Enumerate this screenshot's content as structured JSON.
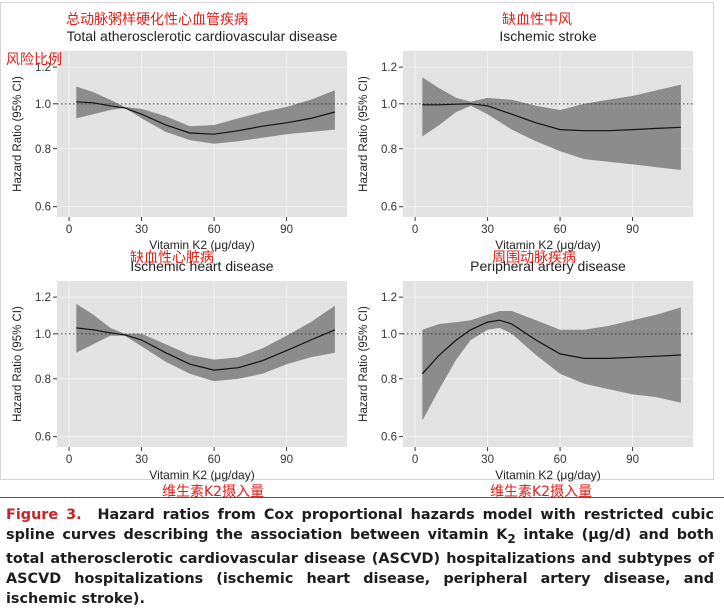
{
  "annotations": {
    "panel1_cn": "总动脉粥样硬化性心血管疾病",
    "ratio_cn": "风险比例",
    "panel2_cn": "缺血性中风",
    "panel3_cn": "缺血性心脏病",
    "panel4_cn": "周围动脉疾病",
    "xaxis_cn_left": "维生素K2摄入量",
    "xaxis_cn_right": "维生素K2摄入量"
  },
  "caption": {
    "label": "Figure 3.",
    "text_a": "Hazard ratios from Cox proportional hazards model with restricted cubic spline curves describing the association between vitamin K",
    "subscript": "2",
    "text_b": " intake (μg/d) and both total atherosclerotic cardiovascular disease (ASCVD) hospitalizations and subtypes of ASCVD hospitalizations (ischemic heart disease, peripheral artery disease, and ischemic stroke)."
  },
  "colors": {
    "panel_bg": "#e3e3e3",
    "band": "#8c8c8c",
    "line": "#111111",
    "annotation_red": "#e0201b",
    "figure_label": "#c8222a"
  },
  "chart_data": [
    {
      "type": "line",
      "title": "Total atherosclerotic cardiovascular disease",
      "xlabel": "Vitamin K2 (μg/day)",
      "ylabel": "Hazard Ratio (95% CI)",
      "x_ticks": [
        0,
        30,
        60,
        90
      ],
      "y_ticks": [
        0.6,
        0.8,
        1.0,
        1.2
      ],
      "y_tick_labels": [
        "0.6",
        "0.8",
        "1.0",
        "1.2"
      ],
      "xlim": [
        -5,
        115
      ],
      "ylim": [
        0.57,
        1.3
      ],
      "y_scale": "log",
      "reference_line": 1.0,
      "grid": true,
      "x": [
        3,
        10,
        17,
        23,
        30,
        40,
        50,
        60,
        70,
        80,
        90,
        100,
        110
      ],
      "y": [
        1.01,
        1.005,
        0.99,
        0.98,
        0.95,
        0.9,
        0.865,
        0.86,
        0.875,
        0.895,
        0.91,
        0.93,
        0.96
      ],
      "ci_lower": [
        0.93,
        0.95,
        0.97,
        0.98,
        0.93,
        0.87,
        0.835,
        0.82,
        0.83,
        0.845,
        0.86,
        0.87,
        0.88
      ],
      "ci_upper": [
        1.09,
        1.06,
        1.02,
        0.985,
        0.975,
        0.94,
        0.895,
        0.9,
        0.93,
        0.96,
        0.985,
        1.02,
        1.07
      ]
    },
    {
      "type": "line",
      "title": "Ischemic stroke",
      "xlabel": "Vitamin K2 (μg/day)",
      "ylabel": "Hazard Ratio (95% CI)",
      "x_ticks": [
        0,
        30,
        60,
        90
      ],
      "y_ticks": [
        0.6,
        0.8,
        1.0,
        1.2
      ],
      "y_tick_labels": [
        "0.6",
        "0.8",
        "1.0",
        "1.2"
      ],
      "xlim": [
        -5,
        115
      ],
      "ylim": [
        0.57,
        1.3
      ],
      "y_scale": "log",
      "reference_line": 1.0,
      "grid": true,
      "x": [
        3,
        10,
        17,
        23,
        30,
        40,
        50,
        60,
        70,
        80,
        90,
        100,
        110
      ],
      "y": [
        0.995,
        0.995,
        0.998,
        1.0,
        0.99,
        0.95,
        0.91,
        0.88,
        0.875,
        0.875,
        0.88,
        0.885,
        0.89
      ],
      "ci_lower": [
        0.85,
        0.9,
        0.96,
        0.99,
        0.95,
        0.88,
        0.83,
        0.79,
        0.76,
        0.75,
        0.74,
        0.73,
        0.72
      ],
      "ci_upper": [
        1.14,
        1.08,
        1.03,
        1.01,
        1.03,
        1.02,
        0.99,
        0.97,
        1.0,
        1.02,
        1.04,
        1.07,
        1.1
      ]
    },
    {
      "type": "line",
      "title": "Ischemic heart disease",
      "xlabel": "Vitamin K2 (μg/day)",
      "ylabel": "Hazard Ratio (95% CI)",
      "x_ticks": [
        0,
        30,
        60,
        90
      ],
      "y_ticks": [
        0.6,
        0.8,
        1.0,
        1.2
      ],
      "y_tick_labels": [
        "0.6",
        "0.8",
        "1.0",
        "1.2"
      ],
      "xlim": [
        -5,
        115
      ],
      "ylim": [
        0.57,
        1.3
      ],
      "y_scale": "log",
      "reference_line": 1.0,
      "grid": true,
      "x": [
        3,
        10,
        17,
        23,
        30,
        40,
        50,
        60,
        70,
        80,
        90,
        100,
        110
      ],
      "y": [
        1.03,
        1.02,
        1.005,
        0.995,
        0.97,
        0.91,
        0.86,
        0.835,
        0.845,
        0.875,
        0.92,
        0.97,
        1.02
      ],
      "ci_lower": [
        0.91,
        0.95,
        0.99,
        0.99,
        0.94,
        0.87,
        0.82,
        0.79,
        0.8,
        0.82,
        0.86,
        0.89,
        0.91
      ],
      "ci_upper": [
        1.16,
        1.1,
        1.03,
        1.0,
        1.0,
        0.95,
        0.9,
        0.88,
        0.89,
        0.93,
        0.99,
        1.06,
        1.15
      ]
    },
    {
      "type": "line",
      "title": "Peripheral artery disease",
      "xlabel": "Vitamin K2 (μg/day)",
      "ylabel": "Hazard Ratio (95% CI)",
      "x_ticks": [
        0,
        30,
        60,
        90
      ],
      "y_ticks": [
        0.6,
        0.8,
        1.0,
        1.2
      ],
      "y_tick_labels": [
        "0.6",
        "0.8",
        "1.0",
        "1.2"
      ],
      "xlim": [
        -5,
        115
      ],
      "ylim": [
        0.57,
        1.3
      ],
      "y_scale": "log",
      "reference_line": 1.0,
      "grid": true,
      "x": [
        3,
        10,
        17,
        23,
        30,
        35,
        40,
        50,
        60,
        70,
        80,
        90,
        100,
        110
      ],
      "y": [
        0.82,
        0.9,
        0.97,
        1.02,
        1.06,
        1.07,
        1.05,
        0.97,
        0.905,
        0.885,
        0.885,
        0.89,
        0.895,
        0.9
      ],
      "ci_lower": [
        0.65,
        0.76,
        0.88,
        0.97,
        1.02,
        1.03,
        1.0,
        0.9,
        0.82,
        0.78,
        0.76,
        0.74,
        0.73,
        0.71
      ],
      "ci_upper": [
        1.02,
        1.05,
        1.06,
        1.07,
        1.1,
        1.12,
        1.12,
        1.07,
        1.02,
        1.02,
        1.04,
        1.07,
        1.1,
        1.14
      ]
    }
  ]
}
